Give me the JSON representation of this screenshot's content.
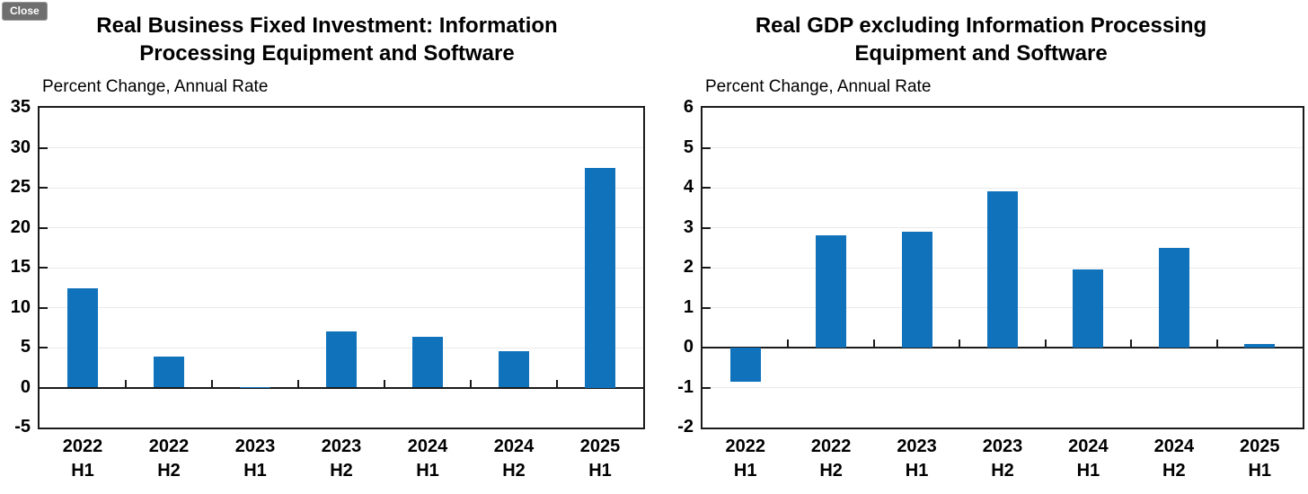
{
  "close_button": {
    "label": "Close"
  },
  "colors": {
    "bar": "#1072BB",
    "axis": "#1a1a1a",
    "gridline": "#e9e9e9",
    "close_bg": "#6f6f6f",
    "close_text": "#ffffff"
  },
  "chart_data": [
    {
      "type": "bar",
      "title": "Real Business Fixed Investment: Information Processing Equipment and Software",
      "title_lines": [
        "Real Business Fixed Investment: Information",
        "Processing Equipment and Software"
      ],
      "subtitle": "Percent Change, Annual Rate",
      "categories": [
        [
          "2022",
          "H1"
        ],
        [
          "2022",
          "H2"
        ],
        [
          "2023",
          "H1"
        ],
        [
          "2023",
          "H2"
        ],
        [
          "2024",
          "H1"
        ],
        [
          "2024",
          "H2"
        ],
        [
          "2025",
          "H1"
        ]
      ],
      "values": [
        12.4,
        3.9,
        0.1,
        7.0,
        6.3,
        4.5,
        27.5
      ],
      "ylim": [
        -5,
        35
      ],
      "ytick_step": 5,
      "xlabel": "",
      "ylabel": "",
      "grid": true,
      "legend": "none",
      "bar_color": "#1072BB"
    },
    {
      "type": "bar",
      "title": "Real GDP excluding Information Processing Equipment and Software",
      "title_lines": [
        "Real GDP excluding Information Processing",
        "Equipment and Software"
      ],
      "subtitle": "Percent Change, Annual Rate",
      "categories": [
        [
          "2022",
          "H1"
        ],
        [
          "2022",
          "H2"
        ],
        [
          "2023",
          "H1"
        ],
        [
          "2023",
          "H2"
        ],
        [
          "2024",
          "H1"
        ],
        [
          "2024",
          "H2"
        ],
        [
          "2025",
          "H1"
        ]
      ],
      "values": [
        -0.85,
        2.8,
        2.9,
        3.9,
        1.95,
        2.5,
        0.1
      ],
      "ylim": [
        -2,
        6
      ],
      "ytick_step": 1,
      "xlabel": "",
      "ylabel": "",
      "grid": true,
      "legend": "none",
      "bar_color": "#1072BB"
    }
  ]
}
